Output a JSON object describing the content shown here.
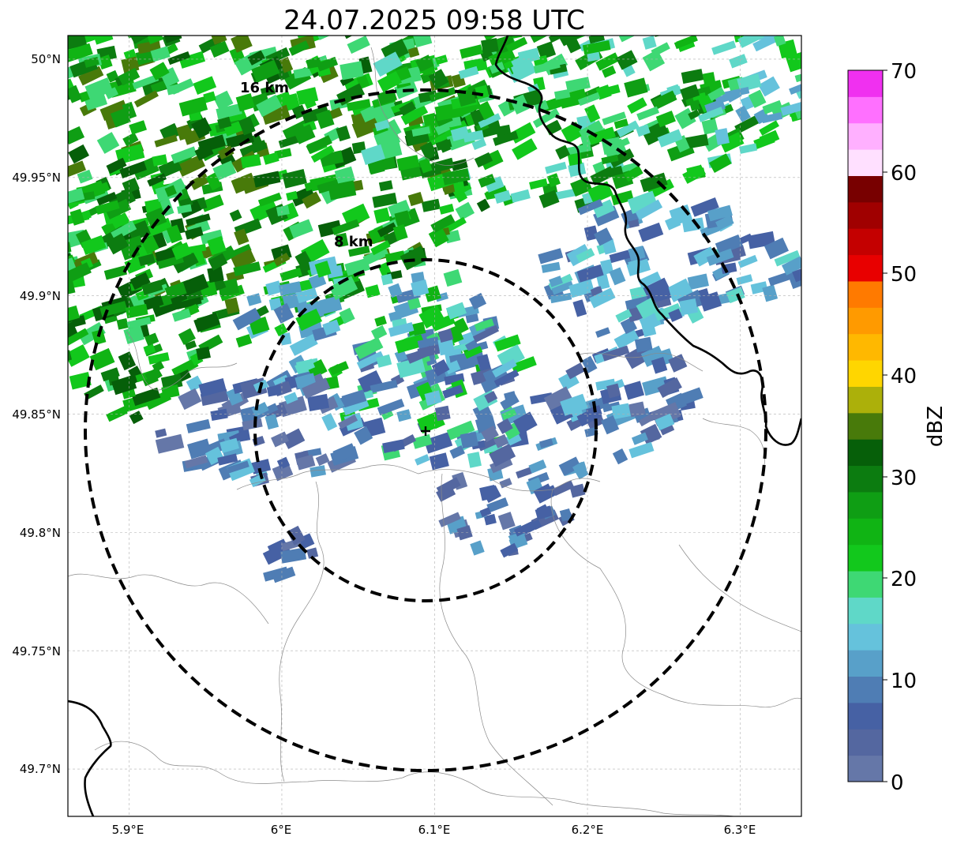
{
  "title": "24.07.2025 09:58 UTC",
  "map": {
    "lon_range": [
      5.86,
      6.34
    ],
    "lat_range": [
      49.68,
      50.01
    ],
    "lon_ticks": [
      {
        "value": 5.9,
        "label": "5.9°E"
      },
      {
        "value": 6.0,
        "label": "6°E"
      },
      {
        "value": 6.1,
        "label": "6.1°E"
      },
      {
        "value": 6.2,
        "label": "6.2°E"
      },
      {
        "value": 6.3,
        "label": "6.3°E"
      }
    ],
    "lat_ticks": [
      {
        "value": 50.0,
        "label": "50°N"
      },
      {
        "value": 49.95,
        "label": "49.95°N"
      },
      {
        "value": 49.9,
        "label": "49.9°N"
      },
      {
        "value": 49.85,
        "label": "49.85°N"
      },
      {
        "value": 49.8,
        "label": "49.8°N"
      },
      {
        "value": 49.75,
        "label": "49.75°N"
      },
      {
        "value": 49.7,
        "label": "49.7°N"
      }
    ],
    "radar_site": {
      "lon": 6.094,
      "lat": 49.843
    },
    "range_rings": [
      {
        "radius_km": 8,
        "label": "8 km"
      },
      {
        "radius_km": 16,
        "label": "16 km"
      }
    ],
    "grid": true
  },
  "colorbar": {
    "label": "dBZ",
    "min": 0,
    "max": 70,
    "ticks": [
      {
        "value": 0,
        "label": "0"
      },
      {
        "value": 10,
        "label": "10"
      },
      {
        "value": 20,
        "label": "20"
      },
      {
        "value": 30,
        "label": "30"
      },
      {
        "value": 40,
        "label": "40"
      },
      {
        "value": 50,
        "label": "50"
      },
      {
        "value": 60,
        "label": "60"
      },
      {
        "value": 70,
        "label": "70"
      }
    ],
    "colors": [
      "#6577a8",
      "#5467a0",
      "#4661a4",
      "#4f7db4",
      "#58a0c9",
      "#65c2dc",
      "#5fd8c8",
      "#3ed874",
      "#12c81c",
      "#10b414",
      "#0f9e14",
      "#0c7c10",
      "#065f09",
      "#487a0a",
      "#acb00a",
      "#ffd600",
      "#ffb800",
      "#ff9a00",
      "#ff7a00",
      "#e80000",
      "#c40000",
      "#a00000",
      "#780000",
      "#ffe0ff",
      "#ffb0ff",
      "#ff70ff",
      "#f030f0"
    ]
  }
}
